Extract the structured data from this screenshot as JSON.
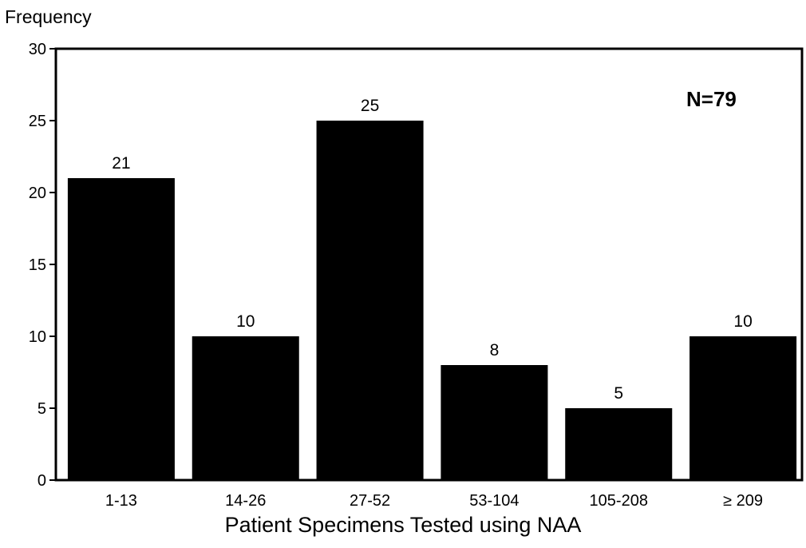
{
  "chart_data": {
    "type": "bar",
    "title": "",
    "ylabel": "Frequency",
    "xlabel": "Patient Specimens Tested using NAA",
    "annotation": "N=79",
    "categories": [
      "1-13",
      "14-26",
      "27-52",
      "53-104",
      "105-208",
      "≥ 209"
    ],
    "values": [
      21,
      10,
      25,
      8,
      5,
      10
    ],
    "data_labels": [
      "21",
      "10",
      "25",
      "8",
      "5",
      "10"
    ],
    "ylim": [
      0,
      30
    ],
    "yticks": [
      0,
      5,
      10,
      15,
      20,
      25,
      30
    ],
    "grid": false,
    "bar_color": "#000000"
  }
}
